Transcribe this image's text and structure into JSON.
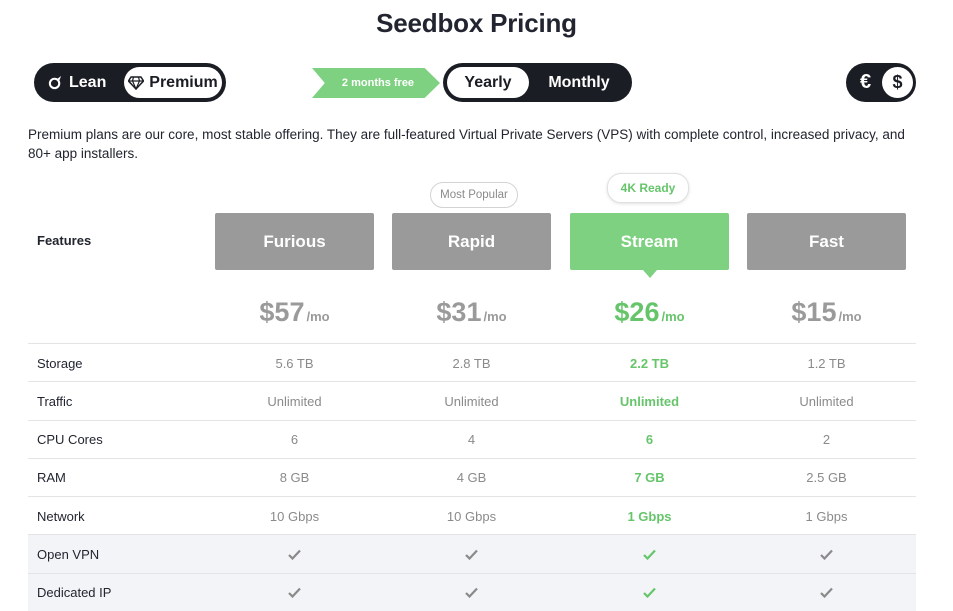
{
  "page": {
    "title": "Seedbox Pricing"
  },
  "tier_toggle": {
    "lean_label": "Lean",
    "premium_label": "Premium",
    "selected": "Premium"
  },
  "promo": {
    "label": "2 months free"
  },
  "billing_toggle": {
    "yearly_label": "Yearly",
    "monthly_label": "Monthly",
    "selected": "Yearly"
  },
  "currency_toggle": {
    "eur_symbol": "€",
    "usd_symbol": "$",
    "selected": "$"
  },
  "description": "Premium plans are our core, most stable offering. They are full-featured Virtual Private Servers (VPS) with complete control, increased privacy, and 80+ app installers.",
  "features_label": "Features",
  "colors": {
    "accent_green": "#7ed180",
    "plan_gray": "#9a9a9a",
    "toggle_dark": "#1b1d24"
  },
  "plans": [
    {
      "name": "Furious",
      "price": "$57",
      "per": "/mo",
      "badge": ""
    },
    {
      "name": "Rapid",
      "price": "$31",
      "per": "/mo",
      "badge": "Most Popular"
    },
    {
      "name": "Stream",
      "price": "$26",
      "per": "/mo",
      "badge": "4K Ready"
    },
    {
      "name": "Fast",
      "price": "$15",
      "per": "/mo",
      "badge": ""
    }
  ],
  "rows": [
    {
      "label": "Storage",
      "values": [
        "5.6 TB",
        "2.8 TB",
        "2.2 TB",
        "1.2 TB"
      ]
    },
    {
      "label": "Traffic",
      "values": [
        "Unlimited",
        "Unlimited",
        "Unlimited",
        "Unlimited"
      ]
    },
    {
      "label": "CPU Cores",
      "values": [
        "6",
        "4",
        "6",
        "2"
      ]
    },
    {
      "label": "RAM",
      "values": [
        "8 GB",
        "4 GB",
        "7 GB",
        "2.5 GB"
      ]
    },
    {
      "label": "Network",
      "values": [
        "10 Gbps",
        "10 Gbps",
        "1 Gbps",
        "1 Gbps"
      ]
    },
    {
      "label": "Open VPN",
      "check": true
    },
    {
      "label": "Dedicated IP",
      "check": true
    }
  ]
}
